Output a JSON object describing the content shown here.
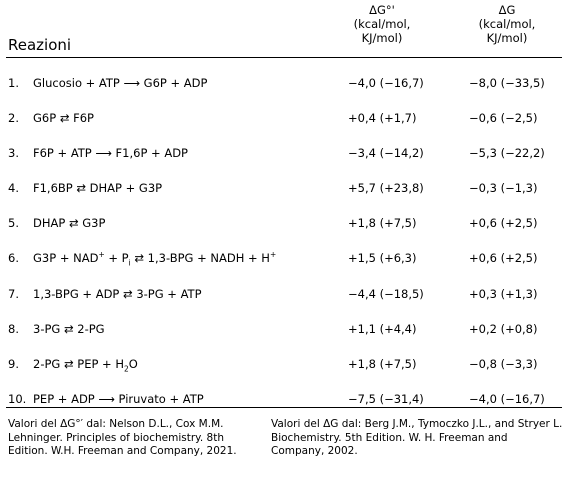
{
  "header": {
    "title": "Reazioni",
    "col_dg0": [
      "ΔG°'",
      "(kcal/mol,",
      "KJ/mol)"
    ],
    "col_dg": [
      "ΔG",
      "(kcal/mol,",
      "KJ/mol)"
    ]
  },
  "rows": [
    {
      "num": "1.",
      "parts": [
        {
          "t": "Glucosio + ATP ⟶ G6P + ADP"
        }
      ],
      "dg0": "−4,0 (−16,7)",
      "dg": "−8,0 (−33,5)"
    },
    {
      "num": "2.",
      "parts": [
        {
          "t": "G6P ⇄ F6P"
        }
      ],
      "dg0": "+0,4 (+1,7)",
      "dg": "−0,6 (−2,5)"
    },
    {
      "num": "3.",
      "parts": [
        {
          "t": "F6P + ATP ⟶ F1,6P + ADP"
        }
      ],
      "dg0": "−3,4 (−14,2)",
      "dg": "−5,3 (−22,2)"
    },
    {
      "num": "4.",
      "parts": [
        {
          "t": "F1,6BP ⇄ DHAP + G3P"
        }
      ],
      "dg0": "+5,7 (+23,8)",
      "dg": "−0,3 (−1,3)"
    },
    {
      "num": "5.",
      "parts": [
        {
          "t": "DHAP ⇄ G3P"
        }
      ],
      "dg0": "+1,8 (+7,5)",
      "dg": "+0,6 (+2,5)"
    },
    {
      "num": "6.",
      "parts": [
        {
          "t": "G3P + NAD"
        },
        {
          "sup": "+"
        },
        {
          "t": " + P"
        },
        {
          "sub": "i"
        },
        {
          "t": " ⇄ 1,3-BPG + NADH + H"
        },
        {
          "sup": "+"
        }
      ],
      "dg0": "+1,5 (+6,3)",
      "dg": "+0,6 (+2,5)"
    },
    {
      "num": "7.",
      "parts": [
        {
          "t": "1,3-BPG + ADP ⇄ 3-PG + ATP"
        }
      ],
      "dg0": "−4,4 (−18,5)",
      "dg": "+0,3 (+1,3)"
    },
    {
      "num": "8.",
      "parts": [
        {
          "t": "3-PG ⇄ 2-PG"
        }
      ],
      "dg0": "+1,1 (+4,4)",
      "dg": "+0,2 (+0,8)"
    },
    {
      "num": "9.",
      "parts": [
        {
          "t": "2-PG ⇄ PEP + H"
        },
        {
          "sub": "2"
        },
        {
          "t": "O"
        }
      ],
      "dg0": "+1,8 (+7,5)",
      "dg": "−0,8 (−3,3)"
    },
    {
      "num": "10.",
      "parts": [
        {
          "t": "PEP + ADP ⟶ Piruvato + ATP"
        }
      ],
      "dg0": "−7,5 (−31,4)",
      "dg": "−4,0 (−16,7)"
    }
  ],
  "notes": {
    "left": "Valori del ΔG°′ dal: Nelson D.L., Cox M.M. Lehninger. Principles of biochemistry. 8th Edition. W.H. Freeman and Company, 2021.",
    "right": "Valori del ΔG dal: Berg J.M., Tymoczko J.L., and Stryer L. Biochemistry. 5th Edition. W. H. Freeman and Company, 2002."
  }
}
